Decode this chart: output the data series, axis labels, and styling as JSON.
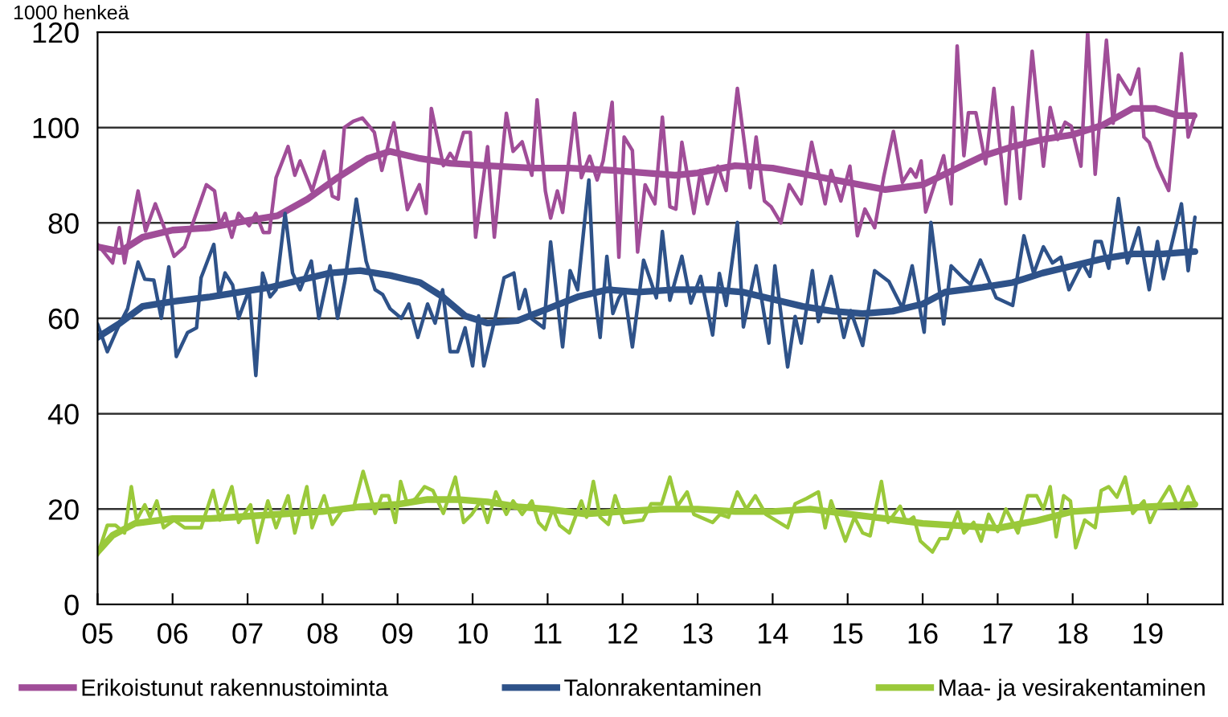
{
  "chart_data": {
    "type": "line",
    "ylabel": "1000 henkeä",
    "xlim": [
      2005,
      2020
    ],
    "xticks": [
      {
        "value": 2005,
        "label": "05"
      },
      {
        "value": 2006,
        "label": "06"
      },
      {
        "value": 2007,
        "label": "07"
      },
      {
        "value": 2008,
        "label": "08"
      },
      {
        "value": 2009,
        "label": "09"
      },
      {
        "value": 2010,
        "label": "10"
      },
      {
        "value": 2011,
        "label": "11"
      },
      {
        "value": 2012,
        "label": "12"
      },
      {
        "value": 2013,
        "label": "13"
      },
      {
        "value": 2014,
        "label": "14"
      },
      {
        "value": 2015,
        "label": "15"
      },
      {
        "value": 2016,
        "label": "16"
      },
      {
        "value": 2017,
        "label": "17"
      },
      {
        "value": 2018,
        "label": "18"
      },
      {
        "value": 2019,
        "label": "19"
      }
    ],
    "ylim": [
      0,
      120
    ],
    "yticks": [
      0,
      20,
      40,
      60,
      80,
      100,
      120
    ],
    "grid": "y",
    "legend": "bottom",
    "marker": "none",
    "line_style": "solid",
    "series": [
      {
        "name": "Erikoistunut rakennustoiminta",
        "color": "#a04d98",
        "x": [
          2005.0,
          2005.2,
          2005.29,
          2005.36,
          2005.54,
          2005.64,
          2005.77,
          2005.88,
          2006.02,
          2006.16,
          2006.45,
          2006.56,
          2006.63,
          2006.7,
          2006.79,
          2006.88,
          2007.02,
          2007.11,
          2007.21,
          2007.29,
          2007.38,
          2007.54,
          2007.63,
          2007.7,
          2007.86,
          2008.02,
          2008.13,
          2008.21,
          2008.29,
          2008.41,
          2008.53,
          2008.69,
          2008.79,
          2008.95,
          2009.13,
          2009.29,
          2009.38,
          2009.45,
          2009.61,
          2009.7,
          2009.77,
          2009.88,
          2009.97,
          2010.04,
          2010.2,
          2010.29,
          2010.45,
          2010.54,
          2010.66,
          2010.79,
          2010.86,
          2010.97,
          2011.04,
          2011.13,
          2011.2,
          2011.36,
          2011.45,
          2011.56,
          2011.66,
          2011.74,
          2011.86,
          2011.95,
          2012.02,
          2012.13,
          2012.2,
          2012.3,
          2012.43,
          2012.53,
          2012.63,
          2012.71,
          2012.79,
          2012.95,
          2013.04,
          2013.13,
          2013.27,
          2013.38,
          2013.53,
          2013.7,
          2013.78,
          2013.89,
          2013.98,
          2014.11,
          2014.22,
          2014.38,
          2014.52,
          2014.7,
          2014.78,
          2014.91,
          2015.03,
          2015.13,
          2015.23,
          2015.36,
          2015.48,
          2015.61,
          2015.73,
          2015.84,
          2015.91,
          2015.98,
          2016.04,
          2016.28,
          2016.38,
          2016.46,
          2016.55,
          2016.61,
          2016.71,
          2016.84,
          2016.95,
          2017.11,
          2017.2,
          2017.3,
          2017.46,
          2017.61,
          2017.7,
          2017.8,
          2017.9,
          2017.98,
          2018.11,
          2018.2,
          2018.3,
          2018.45,
          2018.54,
          2018.61,
          2018.77,
          2018.88,
          2018.95,
          2019.02,
          2019.13,
          2019.28,
          2019.45,
          2019.54,
          2019.63
        ],
        "values": [
          75.5,
          71.6,
          79,
          71.6,
          86.7,
          78.3,
          84,
          79.4,
          73,
          75,
          88,
          86.7,
          79.4,
          82,
          77,
          82,
          79.4,
          82,
          78,
          78,
          89.5,
          96,
          90,
          93,
          86.7,
          95,
          85.6,
          85,
          100,
          101.3,
          102,
          99,
          91,
          101,
          82.8,
          88,
          82,
          104,
          92,
          94.6,
          93,
          99,
          99,
          77,
          96,
          77,
          103,
          95,
          97,
          90,
          105.8,
          86.7,
          81,
          86.7,
          82.2,
          103,
          89.5,
          94,
          89,
          93,
          105.3,
          72.8,
          98,
          95.2,
          73.9,
          88,
          84,
          102.2,
          83.4,
          82.9,
          96.9,
          82,
          91,
          84,
          91.9,
          86.8,
          108.2,
          87.4,
          98,
          84.6,
          83.4,
          80,
          88,
          84,
          96.9,
          84,
          91,
          84.6,
          91.9,
          77.3,
          82.9,
          79,
          89.6,
          99.2,
          88.5,
          91.3,
          89.6,
          93,
          82.3,
          94.1,
          84,
          117.1,
          94.1,
          103.1,
          103.1,
          92.4,
          108.2,
          84,
          104.2,
          85.1,
          116,
          91.9,
          104.2,
          97.5,
          101.1,
          100.3,
          91.9,
          120,
          90.2,
          118.3,
          100.9,
          111,
          107,
          112.3,
          98,
          96.9,
          91.9,
          86.8,
          115.5,
          98,
          102.5
        ]
      },
      {
        "color": "#a04d98",
        "x": [
          2005.0,
          2005.3,
          2005.6,
          2006.0,
          2006.5,
          2007.0,
          2007.4,
          2007.8,
          2008.2,
          2008.6,
          2008.9,
          2009.3,
          2009.7,
          2010.2,
          2010.8,
          2011.3,
          2011.9,
          2012.3,
          2012.7,
          2013.0,
          2013.5,
          2014.0,
          2014.5,
          2015.0,
          2015.5,
          2016.0,
          2016.4,
          2016.8,
          2017.2,
          2017.6,
          2018.0,
          2018.4,
          2018.8,
          2019.1,
          2019.4,
          2019.62
        ],
        "values": [
          75,
          74,
          77,
          78.5,
          79,
          80.5,
          81.5,
          85,
          89.5,
          93.5,
          95,
          93.5,
          92.5,
          92,
          91.5,
          91.5,
          91,
          90.5,
          90,
          90.5,
          92,
          91.5,
          90,
          88.5,
          87,
          88,
          91,
          94,
          96,
          97.5,
          98.5,
          100.5,
          104,
          104,
          102.5,
          102.5
        ]
      },
      {
        "name": "Talonrakentaminen",
        "color": "#2e5289",
        "x": [
          2005.0,
          2005.13,
          2005.27,
          2005.4,
          2005.54,
          2005.63,
          2005.75,
          2005.85,
          2005.95,
          2006.05,
          2006.2,
          2006.32,
          2006.38,
          2006.55,
          2006.62,
          2006.7,
          2006.8,
          2006.88,
          2007.02,
          2007.11,
          2007.2,
          2007.3,
          2007.38,
          2007.5,
          2007.6,
          2007.7,
          2007.85,
          2007.95,
          2008.1,
          2008.2,
          2008.3,
          2008.45,
          2008.58,
          2008.7,
          2008.8,
          2008.9,
          2009.05,
          2009.15,
          2009.27,
          2009.4,
          2009.5,
          2009.6,
          2009.7,
          2009.8,
          2009.9,
          2010.0,
          2010.08,
          2010.15,
          2010.3,
          2010.42,
          2010.55,
          2010.62,
          2010.7,
          2010.78,
          2010.95,
          2011.04,
          2011.2,
          2011.3,
          2011.4,
          2011.55,
          2011.62,
          2011.7,
          2011.79,
          2011.87,
          2011.95,
          2012.02,
          2012.13,
          2012.28,
          2012.45,
          2012.53,
          2012.63,
          2012.79,
          2012.91,
          2013.04,
          2013.2,
          2013.29,
          2013.38,
          2013.53,
          2013.61,
          2013.78,
          2013.95,
          2014.03,
          2014.2,
          2014.3,
          2014.38,
          2014.53,
          2014.61,
          2014.78,
          2014.95,
          2015.04,
          2015.2,
          2015.36,
          2015.55,
          2015.73,
          2015.86,
          2016.02,
          2016.11,
          2016.28,
          2016.38,
          2016.55,
          2016.64,
          2016.77,
          2016.98,
          2017.2,
          2017.35,
          2017.48,
          2017.61,
          2017.73,
          2017.84,
          2017.95,
          2018.13,
          2018.23,
          2018.3,
          2018.38,
          2018.48,
          2018.61,
          2018.73,
          2018.88,
          2019.02,
          2019.13,
          2019.21,
          2019.45,
          2019.54,
          2019.63
        ],
        "values": [
          58.8,
          53,
          58,
          62,
          71.8,
          68.2,
          68,
          60,
          70.8,
          52,
          57,
          58,
          68.5,
          75.5,
          64.5,
          69.5,
          67,
          60,
          66,
          48,
          69.5,
          64.5,
          66,
          82,
          69.5,
          66,
          72,
          60,
          71,
          60,
          68,
          85,
          72,
          66,
          65,
          62,
          60,
          63,
          56,
          63,
          59,
          66,
          53,
          53,
          58,
          50,
          60.5,
          50,
          60,
          68.5,
          69.5,
          62,
          66,
          60,
          58,
          76,
          54,
          70,
          66,
          89,
          66,
          56,
          73,
          61,
          64.3,
          66,
          54,
          72.2,
          64.3,
          78.2,
          63.8,
          73,
          63.2,
          68.8,
          56.5,
          69.4,
          62.7,
          80.1,
          58.2,
          71,
          54.8,
          71,
          49.8,
          60.4,
          54.8,
          70,
          59.3,
          68.8,
          56,
          61.6,
          54.3,
          70,
          67.7,
          62.1,
          71,
          57.1,
          80.1,
          58.8,
          71,
          68.3,
          67.1,
          72.2,
          64.3,
          62.7,
          77.3,
          69.4,
          75,
          71.6,
          72.8,
          66,
          71.6,
          68.8,
          76.1,
          76.1,
          70.5,
          85.1,
          71.6,
          79,
          66,
          76.1,
          68.3,
          84,
          70,
          81.2
        ]
      },
      {
        "color": "#2e5289",
        "x": [
          2005.0,
          2005.3,
          2005.6,
          2006.0,
          2006.5,
          2006.9,
          2007.3,
          2007.7,
          2008.1,
          2008.5,
          2008.9,
          2009.3,
          2009.6,
          2009.9,
          2010.2,
          2010.6,
          2011.0,
          2011.4,
          2011.8,
          2012.2,
          2012.7,
          2013.2,
          2013.6,
          2014.0,
          2014.4,
          2014.8,
          2015.2,
          2015.6,
          2016.0,
          2016.3,
          2016.8,
          2017.2,
          2017.6,
          2018.0,
          2018.4,
          2018.8,
          2019.2,
          2019.63
        ],
        "values": [
          56,
          59,
          62.5,
          63.5,
          64.5,
          65.5,
          66.5,
          68,
          69.5,
          70,
          69,
          67.5,
          64.5,
          60.5,
          59,
          59.5,
          62,
          64.5,
          66,
          65.5,
          66,
          66,
          65.5,
          64,
          62.5,
          61.5,
          61,
          61.5,
          63,
          65.5,
          66.5,
          67.5,
          69.5,
          71,
          72.5,
          73.5,
          73.5,
          74
        ]
      },
      {
        "name": "Maa- ja vesirakentaminen",
        "color": "#9ac93a",
        "x": [
          2005.0,
          2005.13,
          2005.24,
          2005.36,
          2005.45,
          2005.52,
          2005.63,
          2005.7,
          2005.79,
          2005.88,
          2006.02,
          2006.16,
          2006.38,
          2006.54,
          2006.63,
          2006.79,
          2006.88,
          2007.04,
          2007.13,
          2007.27,
          2007.38,
          2007.54,
          2007.63,
          2007.79,
          2007.86,
          2008.02,
          2008.13,
          2008.27,
          2008.41,
          2008.54,
          2008.7,
          2008.79,
          2008.88,
          2008.97,
          2009.04,
          2009.13,
          2009.24,
          2009.36,
          2009.47,
          2009.61,
          2009.77,
          2009.88,
          2009.99,
          2010.11,
          2010.2,
          2010.31,
          2010.45,
          2010.54,
          2010.66,
          2010.79,
          2010.88,
          2010.97,
          2011.07,
          2011.16,
          2011.29,
          2011.45,
          2011.52,
          2011.61,
          2011.7,
          2011.81,
          2011.9,
          2012.02,
          2012.27,
          2012.38,
          2012.52,
          2012.63,
          2012.73,
          2012.86,
          2012.95,
          2013.2,
          2013.3,
          2013.41,
          2013.53,
          2013.65,
          2013.77,
          2013.91,
          2014.2,
          2014.3,
          2014.45,
          2014.61,
          2014.7,
          2014.78,
          2014.97,
          2015.09,
          2015.2,
          2015.3,
          2015.45,
          2015.54,
          2015.7,
          2015.78,
          2015.88,
          2015.97,
          2016.13,
          2016.23,
          2016.33,
          2016.47,
          2016.55,
          2016.68,
          2016.78,
          2016.88,
          2017.0,
          2017.11,
          2017.27,
          2017.4,
          2017.52,
          2017.61,
          2017.7,
          2017.78,
          2017.88,
          2017.97,
          2018.04,
          2018.16,
          2018.3,
          2018.38,
          2018.48,
          2018.59,
          2018.7,
          2018.8,
          2018.95,
          2019.03,
          2019.13,
          2019.29,
          2019.41,
          2019.54,
          2019.63
        ],
        "values": [
          10.4,
          16.6,
          16.6,
          15,
          24.7,
          17.7,
          20.9,
          18.3,
          21.7,
          16.1,
          17.7,
          16.1,
          16.1,
          23.9,
          17.7,
          24.7,
          17.2,
          20.9,
          13,
          21.7,
          16.1,
          22.8,
          15,
          24.7,
          16.1,
          22.8,
          16.8,
          20,
          20,
          27.9,
          19.1,
          22.8,
          22.8,
          17.2,
          25.8,
          21.1,
          22.2,
          24.7,
          23.9,
          19.1,
          26.7,
          17.2,
          18.9,
          21.7,
          17.2,
          23.6,
          18.9,
          21.7,
          18.9,
          21.7,
          17.2,
          15.7,
          20,
          16.6,
          15,
          21.7,
          18.3,
          25.8,
          18.3,
          16.8,
          22.8,
          17.2,
          17.7,
          21.1,
          21.1,
          26.7,
          20.6,
          23.6,
          18.9,
          17.2,
          18.9,
          18.3,
          23.6,
          20,
          22.8,
          18.9,
          16.1,
          21.1,
          22.2,
          23.6,
          16.1,
          21.7,
          13.3,
          18.3,
          15,
          14.4,
          25.8,
          17.2,
          20.6,
          17.2,
          18.3,
          13.3,
          11,
          13.8,
          13.8,
          19.4,
          15,
          17.2,
          13.3,
          18.9,
          15.3,
          20,
          15,
          22.8,
          22.8,
          20,
          24.7,
          14.2,
          22.8,
          21.7,
          11.9,
          17.7,
          16.1,
          23.9,
          24.7,
          22.5,
          26.7,
          19.1,
          21.7,
          17.2,
          20.6,
          24.7,
          20.2,
          24.7,
          21.3
        ]
      },
      {
        "color": "#9ac93a",
        "x": [
          2005.0,
          2005.2,
          2005.5,
          2006.0,
          2006.5,
          2007.0,
          2007.5,
          2008.0,
          2008.5,
          2009.0,
          2009.4,
          2009.8,
          2010.2,
          2010.6,
          2011.0,
          2011.5,
          2012.0,
          2012.5,
          2013.0,
          2013.5,
          2014.0,
          2014.5,
          2015.0,
          2015.5,
          2016.0,
          2016.5,
          2017.0,
          2017.5,
          2018.0,
          2018.5,
          2019.0,
          2019.63
        ],
        "values": [
          11,
          14.5,
          17,
          18,
          18,
          18.5,
          19,
          19.5,
          20.5,
          21,
          22,
          22,
          21.5,
          20.5,
          20,
          19,
          19.5,
          20,
          20,
          19.5,
          19.5,
          20,
          19,
          18,
          17,
          16.5,
          16,
          17.5,
          19.5,
          20,
          20.5,
          21
        ]
      }
    ]
  }
}
